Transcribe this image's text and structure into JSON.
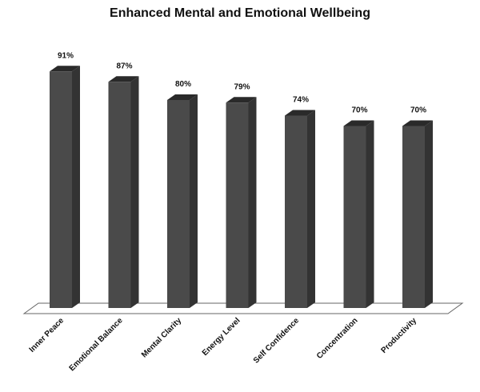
{
  "chart_data": {
    "type": "bar",
    "title": "Enhanced Mental and Emotional Wellbeing",
    "categories": [
      "Inner Peace",
      "Emotional Balance",
      "Mental Clarity",
      "Energy Level",
      "Self Confidence",
      "Concentration",
      "Productivity"
    ],
    "values": [
      91,
      87,
      80,
      79,
      74,
      70,
      70
    ],
    "value_labels": [
      "91%",
      "87%",
      "80%",
      "79%",
      "74%",
      "70%",
      "70%"
    ],
    "unit": "%",
    "ylim": [
      0,
      100
    ],
    "grid": false,
    "legend": "none",
    "bar_color": "#4a4a4a",
    "bar_top_color": "#2a2a2a",
    "bar_side_color": "#333333",
    "floor_color": "#ffffff"
  }
}
